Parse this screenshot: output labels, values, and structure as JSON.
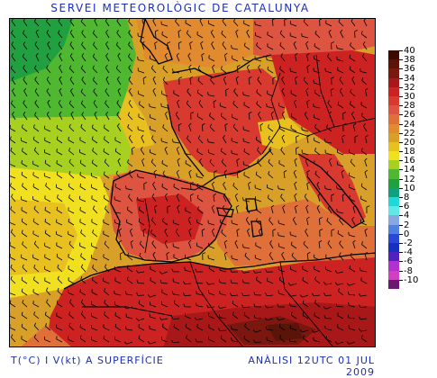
{
  "header": {
    "title": "SERVEI METEOROLÒGIC DE CATALUNYA"
  },
  "footer": {
    "variable_label": "T(°C) I V(kt) A SUPERFÍCIE",
    "analysis_label": "ANÀLISI 12UTC 01 JUL 2009"
  },
  "map": {
    "region": "Western Europe, Iberian Peninsula and North Africa",
    "fields": [
      "temperature shading",
      "wind barbs",
      "coastlines",
      "borders"
    ]
  },
  "legend": {
    "levels": [
      {
        "label": "40",
        "color": "#3c0a00"
      },
      {
        "label": "38",
        "color": "#5a1408"
      },
      {
        "label": "36",
        "color": "#7a1810"
      },
      {
        "label": "34",
        "color": "#a81818"
      },
      {
        "label": "32",
        "color": "#cc2222"
      },
      {
        "label": "30",
        "color": "#d83a30"
      },
      {
        "label": "28",
        "color": "#dd5540"
      },
      {
        "label": "26",
        "color": "#e0703a"
      },
      {
        "label": "24",
        "color": "#e28a30"
      },
      {
        "label": "22",
        "color": "#d8a028"
      },
      {
        "label": "20",
        "color": "#e8c020"
      },
      {
        "label": "18",
        "color": "#f0e020"
      },
      {
        "label": "16",
        "color": "#a8d020"
      },
      {
        "label": "14",
        "color": "#50b830"
      },
      {
        "label": "12",
        "color": "#20a040"
      },
      {
        "label": "10",
        "color": "#10a080"
      },
      {
        "label": "8",
        "color": "#20d8d8"
      },
      {
        "label": "6",
        "color": "#60e8e8"
      },
      {
        "label": "4",
        "color": "#8aa8e0"
      },
      {
        "label": "2",
        "color": "#5080e0"
      },
      {
        "label": "0",
        "color": "#2848d8"
      },
      {
        "label": "-2",
        "color": "#1830c0"
      },
      {
        "label": "-4",
        "color": "#5020c0"
      },
      {
        "label": "-6",
        "color": "#b030d0"
      },
      {
        "label": "-8",
        "color": "#d040c0"
      },
      {
        "label": "-10",
        "color": "#6a1870"
      }
    ]
  }
}
